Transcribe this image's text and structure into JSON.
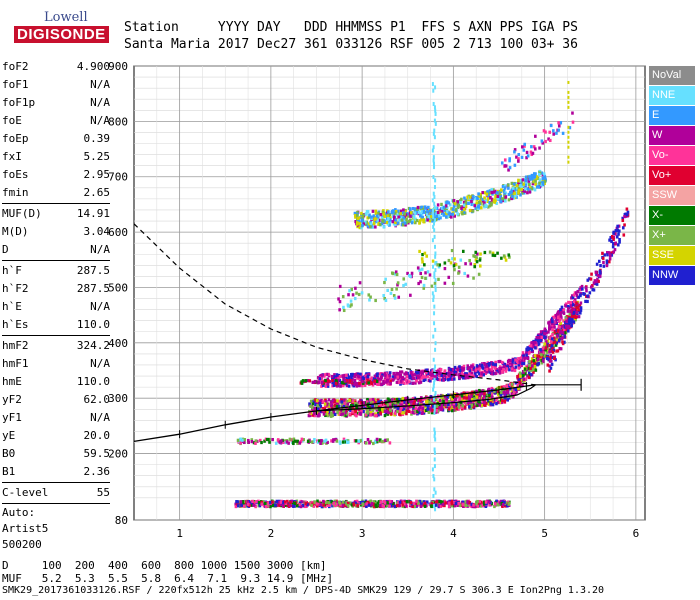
{
  "logo": {
    "line1": "Lowell",
    "line2": "DIGISONDE"
  },
  "header": {
    "line1": "Station     YYYY DAY   DDD HHMMSS P1  FFS S AXN PPS IGA PS",
    "line2": "Santa Maria 2017 Dec27 361 033126 RSF 005 2 713 100 03+ 36"
  },
  "params": {
    "group1": [
      {
        "name": "foF2",
        "value": "4.900"
      },
      {
        "name": "foF1",
        "value": "N/A"
      },
      {
        "name": "foF1p",
        "value": "N/A"
      },
      {
        "name": "foE",
        "value": "N/A"
      },
      {
        "name": "foEp",
        "value": "0.39"
      },
      {
        "name": "fxI",
        "value": "5.25"
      },
      {
        "name": "foEs",
        "value": "2.95"
      },
      {
        "name": "fmin",
        "value": "2.65"
      }
    ],
    "group2": [
      {
        "name": "MUF(D)",
        "value": "14.91"
      },
      {
        "name": "M(D)",
        "value": "3.04"
      },
      {
        "name": "D",
        "value": "N/A"
      }
    ],
    "group3": [
      {
        "name": "h`F",
        "value": "287.5"
      },
      {
        "name": "h`F2",
        "value": "287.5"
      },
      {
        "name": "h`E",
        "value": "N/A"
      },
      {
        "name": "h`Es",
        "value": "110.0"
      }
    ],
    "group4": [
      {
        "name": "hmF2",
        "value": "324.2"
      },
      {
        "name": "hmF1",
        "value": "N/A"
      },
      {
        "name": "hmE",
        "value": "110.0"
      },
      {
        "name": "yF2",
        "value": "62.0"
      },
      {
        "name": "yF1",
        "value": "N/A"
      },
      {
        "name": "yE",
        "value": "20.0"
      },
      {
        "name": "B0",
        "value": "59.5"
      },
      {
        "name": "B1",
        "value": "2.36"
      }
    ],
    "group5": [
      {
        "name": "C-level",
        "value": "55"
      }
    ],
    "auto_label": "Auto:",
    "artist": "Artist5",
    "artist_code": "500200"
  },
  "legend": [
    {
      "label": "NoVal",
      "color": "#8c8c8c"
    },
    {
      "label": "NNE",
      "color": "#66e0ff"
    },
    {
      "label": "E",
      "color": "#3399ff"
    },
    {
      "label": "W",
      "color": "#b0009a"
    },
    {
      "label": "Vo-",
      "color": "#ff3399"
    },
    {
      "label": "Vo+",
      "color": "#e00030"
    },
    {
      "label": "SSW",
      "color": "#f4a3a3"
    },
    {
      "label": "X-",
      "color": "#007a00"
    },
    {
      "label": "X+",
      "color": "#7ab648"
    },
    {
      "label": "SSE",
      "color": "#d4d400"
    },
    {
      "label": "NNW",
      "color": "#2020d0"
    }
  ],
  "footer": {
    "line1": "D     100  200  400  600  800 1000 1500 3000 [km]",
    "line2": "MUF   5.2  5.3  5.5  5.8  6.4  7.1  9.3 14.9 [MHz]",
    "line3": "SMK29_2017361033126.RSF / 220fx512h 25 kHz 2.5 km / DPS-4D SMK29 129 / 29.7 S 306.3 E Ion2Png 1.3.20"
  },
  "chart_data": {
    "type": "scatter",
    "xlim": [
      0.5,
      6.1
    ],
    "ylim": [
      80,
      900
    ],
    "x_ticks": [
      "1",
      "2",
      "3",
      "4",
      "5",
      "6"
    ],
    "y_ticks": [
      "80",
      "200",
      "300",
      "400",
      "500",
      "600",
      "700",
      "800",
      "900"
    ],
    "grid": true,
    "foF2": 4.9,
    "series": [
      {
        "name": "W",
        "values": [
          [
            2.5,
            287
          ],
          [
            3.0,
            295
          ],
          [
            3.5,
            310
          ],
          [
            4.0,
            330
          ],
          [
            4.5,
            365
          ],
          [
            4.9,
            420
          ],
          [
            5.3,
            520
          ],
          [
            4.0,
            675
          ],
          [
            4.5,
            720
          ],
          [
            5.0,
            790
          ]
        ]
      },
      {
        "name": "NNE",
        "values": [
          [
            3.8,
            860
          ],
          [
            3.8,
            700
          ],
          [
            3.8,
            520
          ],
          [
            3.8,
            350
          ],
          [
            3.8,
            200
          ],
          [
            3.8,
            90
          ]
        ]
      },
      {
        "name": "E",
        "values": [
          [
            3.0,
            640
          ],
          [
            3.5,
            655
          ],
          [
            4.0,
            690
          ],
          [
            4.5,
            730
          ],
          [
            4.9,
            750
          ]
        ]
      },
      {
        "name": "NNW",
        "values": [
          [
            5.3,
            450
          ],
          [
            5.6,
            540
          ],
          [
            5.8,
            620
          ]
        ]
      },
      {
        "name": "X+",
        "values": [
          [
            3.2,
            292
          ],
          [
            3.7,
            305
          ],
          [
            4.2,
            330
          ],
          [
            4.6,
            360
          ],
          [
            4.2,
            590
          ]
        ]
      },
      {
        "name": "Vo+",
        "values": [
          [
            2.7,
            288
          ],
          [
            3.2,
            298
          ],
          [
            4.0,
            328
          ],
          [
            4.7,
            385
          ],
          [
            5.1,
            450
          ]
        ]
      }
    ],
    "profile_curve": [
      [
        0.5,
        222
      ],
      [
        1.0,
        235
      ],
      [
        1.5,
        252
      ],
      [
        2.0,
        266
      ],
      [
        2.5,
        277
      ],
      [
        3.0,
        287
      ],
      [
        3.5,
        297
      ],
      [
        4.0,
        306
      ],
      [
        4.5,
        315
      ],
      [
        4.8,
        322
      ],
      [
        4.9,
        324.2
      ]
    ],
    "profile_errorbar": {
      "x": [
        4.9,
        5.4
      ],
      "y": 324.2
    },
    "mufd_curve": [
      [
        0.5,
        615
      ],
      [
        1.0,
        535
      ],
      [
        1.5,
        470
      ],
      [
        2.0,
        425
      ],
      [
        2.5,
        392
      ],
      [
        3.0,
        370
      ],
      [
        3.5,
        353
      ],
      [
        4.0,
        342
      ],
      [
        4.5,
        333
      ],
      [
        4.9,
        324
      ]
    ]
  }
}
